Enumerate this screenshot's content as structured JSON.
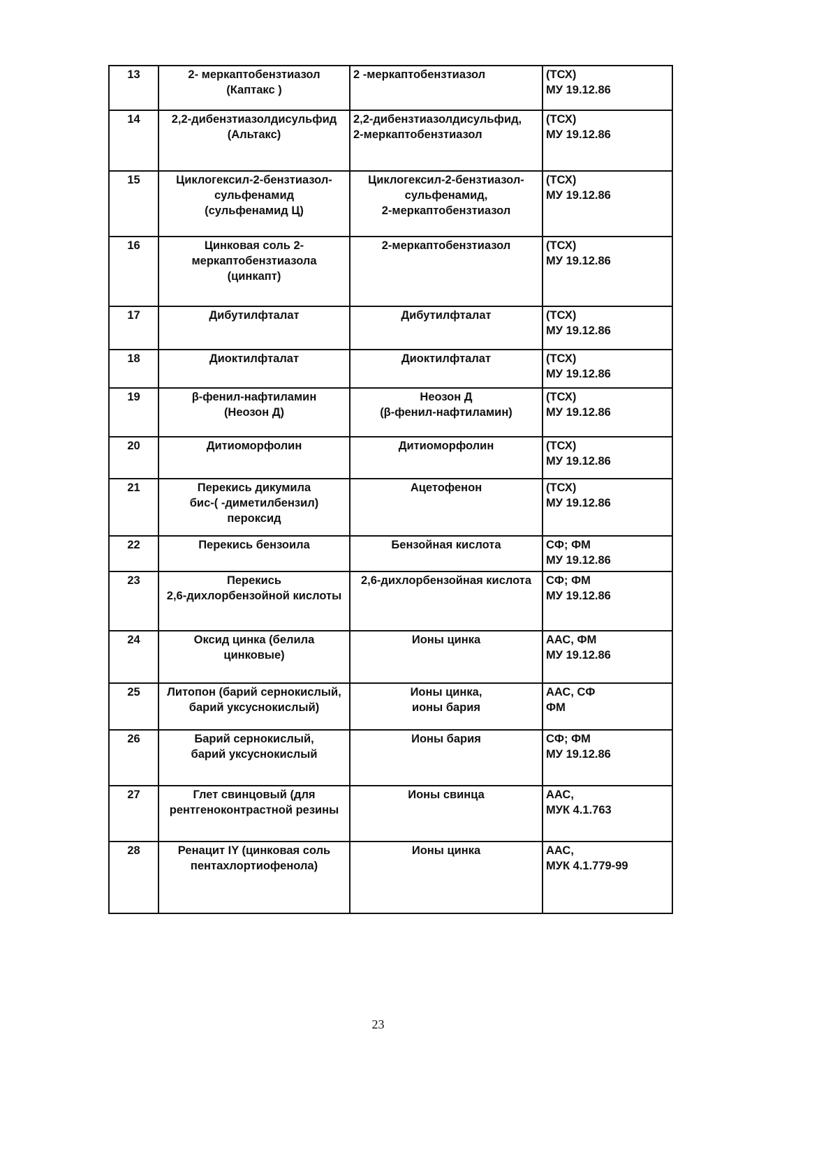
{
  "table": {
    "rows": [
      {
        "num": "13",
        "substance": "2- меркаптобензтиазол\n(Каптакс )",
        "analyte": "2 -меркаптобензтиазол",
        "method": "(ТСХ)\nМУ 19.12.86"
      },
      {
        "num": "14",
        "substance": "2,2-дибензтиазолдисульфид\n(Альтакс)",
        "analyte": "2,2-дибензтиазолдисульфид,\n2-меркаптобензтиазол",
        "method": "(ТСХ)\nМУ 19.12.86"
      },
      {
        "num": "15",
        "substance": "Циклогексил-2-бензтиазол-\nсульфенамид\n(сульфенамид Ц)",
        "analyte": "Циклогексил-2-бензтиазол-\nсульфенамид,\n2-меркаптобензтиазол",
        "method": "(ТСХ)\nМУ 19.12.86"
      },
      {
        "num": "16",
        "substance": "Цинковая соль 2-\nмеркаптобензтиазола\n(цинкапт)",
        "analyte": "2-меркаптобензтиазол",
        "method": "(ТСХ)\nМУ 19.12.86"
      },
      {
        "num": "17",
        "substance": "Дибутилфталат",
        "analyte": "Дибутилфталат",
        "method": "(ТСХ)\nМУ 19.12.86"
      },
      {
        "num": "18",
        "substance": "Диоктилфталат",
        "analyte": "Диоктилфталат",
        "method": "(ТСХ)\nМУ 19.12.86"
      },
      {
        "num": "19",
        "substance": "β-фенил-нафтиламин\n(Неозон Д)",
        "analyte": "Неозон Д\n(β-фенил-нафтиламин)",
        "method": "(ТСХ)\nМУ 19.12.86"
      },
      {
        "num": "20",
        "substance": "Дитиоморфолин",
        "analyte": "Дитиоморфолин",
        "method": "(ТСХ)\nМУ 19.12.86"
      },
      {
        "num": "21",
        "substance": "Перекись дикумила\nбис-( -диметилбензил)\nпероксид",
        "analyte": "Ацетофенон",
        "method": "(ТСХ)\nМУ 19.12.86"
      },
      {
        "num": "22",
        "substance": "Перекись бензоила",
        "analyte": "Бензойная кислота",
        "method": "СФ; ФМ\nМУ 19.12.86"
      },
      {
        "num": "23",
        "substance": "Перекись\n2,6-дихлорбензойной кислоты",
        "analyte": "2,6-дихлорбензойная кислота",
        "method": "СФ; ФМ\nМУ 19.12.86"
      },
      {
        "num": "24",
        "substance": "Оксид цинка (белила\nцинковые)",
        "analyte": "Ионы цинка",
        "method": "ААС, ФМ\nМУ 19.12.86"
      },
      {
        "num": "25",
        "substance": "Литопон (барий сернокислый,\nбарий уксуснокислый)",
        "analyte": "Ионы цинка,\nионы бария",
        "method": "ААС, СФ\nФМ"
      },
      {
        "num": "26",
        "substance": "Барий сернокислый,\nбарий уксуснокислый",
        "analyte": "Ионы бария",
        "method": "СФ; ФМ\nМУ 19.12.86"
      },
      {
        "num": "27",
        "substance": "Глет свинцовый  (для\nрентгеноконтрастной резины",
        "analyte": "Ионы свинца",
        "method": "ААС,\nМУК 4.1.763"
      },
      {
        "num": "28",
        "substance": "Ренацит IY (цинковая соль\nпентахлортиофенола)",
        "analyte": "Ионы цинка",
        "method": "ААС,\nМУК 4.1.779-99"
      }
    ]
  },
  "page_number": "23"
}
